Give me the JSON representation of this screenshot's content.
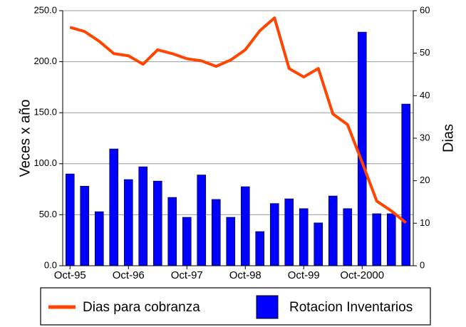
{
  "chart_data": {
    "type": "bar-line",
    "y_label": "Veces x año",
    "y2_label": "Dias",
    "categories": [
      "Oct-95",
      null,
      null,
      null,
      "Oct-96",
      null,
      null,
      null,
      "Oct-97",
      null,
      null,
      null,
      "Oct-98",
      null,
      null,
      null,
      "Oct-99",
      null,
      null,
      null,
      "Oct-2000",
      null,
      null,
      null
    ],
    "series": [
      {
        "name": "Dias para cobranza",
        "type": "line",
        "axis": "y2",
        "color": "#ff4500",
        "values": [
          56.1,
          55.1,
          52.8,
          49.9,
          49.4,
          47.4,
          50.8,
          49.9,
          48.7,
          48.2,
          46.9,
          48.4,
          50.8,
          55.3,
          58.3,
          46.4,
          44.4,
          46.4,
          35.7,
          33.2,
          24.3,
          15.2,
          12.9,
          10.1
        ]
      },
      {
        "name": "Rotacion Inventarios",
        "type": "bar",
        "axis": "y",
        "color": "#0000ff",
        "values": [
          90,
          78,
          53,
          114.5,
          84.5,
          97,
          83,
          67,
          47.5,
          89,
          65,
          47.5,
          77.5,
          33.5,
          61,
          65.6,
          56,
          42,
          68.4,
          56,
          229,
          51,
          51,
          158.5
        ]
      }
    ],
    "ylim": [
      0,
      250
    ],
    "yticks": [
      {
        "value": 0,
        "label": "0.0"
      },
      {
        "value": 50,
        "label": "50.0"
      },
      {
        "value": 100,
        "label": "100.0"
      },
      {
        "value": 150,
        "label": "150.0"
      },
      {
        "value": 200,
        "label": "200.0"
      },
      {
        "value": 250,
        "label": "250.0"
      }
    ],
    "y2lim": [
      0,
      60
    ],
    "y2ticks": [
      0,
      10,
      20,
      30,
      40,
      50,
      60
    ],
    "grid": true,
    "legend": "bottom"
  }
}
